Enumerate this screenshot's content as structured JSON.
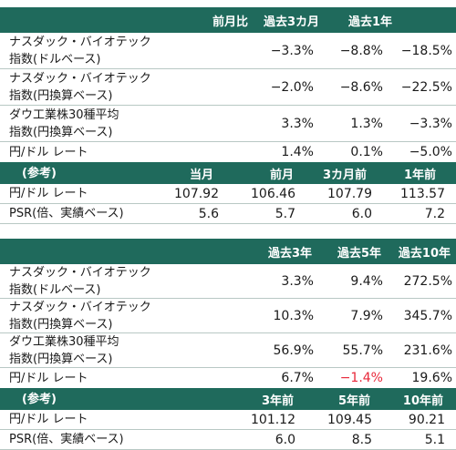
{
  "table1": {
    "headers": [
      "",
      "前月比",
      "過去3カ月",
      "過去1年"
    ],
    "rows": [
      {
        "label_lines": [
          "ナスダック・バイオテック",
          "指数(ドルベース)"
        ],
        "values": [
          "−3.3%",
          "−8.8%",
          "−18.5%"
        ]
      },
      {
        "label_lines": [
          "ナスダック・バイオテック",
          "指数(円換算ベース)"
        ],
        "values": [
          "−2.0%",
          "−8.6%",
          "−22.5%"
        ]
      },
      {
        "label_lines": [
          "ダウ工業株30種平均",
          "指数(円換算ベース)"
        ],
        "values": [
          "3.3%",
          "1.3%",
          "−3.3%"
        ]
      },
      {
        "label_lines": [
          "円/ドル レート"
        ],
        "values": [
          "1.4%",
          "0.1%",
          "−5.0%"
        ]
      }
    ],
    "ref_headers": [
      "(参考)",
      "当月",
      "前月",
      "3カ月前",
      "1年前"
    ],
    "ref_rows": [
      {
        "label": "円/ドル レート",
        "values": [
          "107.92",
          "106.46",
          "107.79",
          "113.57"
        ]
      },
      {
        "label": "PSR(倍、実績ベース)",
        "values": [
          "5.6",
          "5.7",
          "6.0",
          "7.2"
        ]
      }
    ]
  },
  "table2": {
    "headers": [
      "",
      "過去3年",
      "過去5年",
      "過去10年"
    ],
    "rows": [
      {
        "label_lines": [
          "ナスダック・バイオテック",
          "指数(ドルベース)"
        ],
        "values": [
          "3.3%",
          "9.4%",
          "272.5%"
        ]
      },
      {
        "label_lines": [
          "ナスダック・バイオテック",
          "指数(円換算ベース)"
        ],
        "values": [
          "10.3%",
          "7.9%",
          "345.7%"
        ]
      },
      {
        "label_lines": [
          "ダウ工業株30種平均",
          "指数(円換算ベース)"
        ],
        "values": [
          "56.9%",
          "55.7%",
          "231.6%"
        ]
      },
      {
        "label_lines": [
          "円/ドル レート"
        ],
        "values": [
          "6.7%",
          "−1.4%",
          "19.6%"
        ]
      }
    ],
    "ref_headers": [
      "(参考)",
      "",
      "3年前",
      "5年前",
      "10年前"
    ],
    "ref_rows": [
      {
        "label": "円/ドル レート",
        "values": [
          "",
          "101.12",
          "109.45",
          "90.21"
        ]
      },
      {
        "label": "PSR(倍、実績ベース)",
        "values": [
          "",
          "6.0",
          "8.5",
          "5.1"
        ]
      }
    ]
  },
  "colors": {
    "header_bg": "#1f6a5c",
    "negative_highlight": "#e8283a"
  }
}
